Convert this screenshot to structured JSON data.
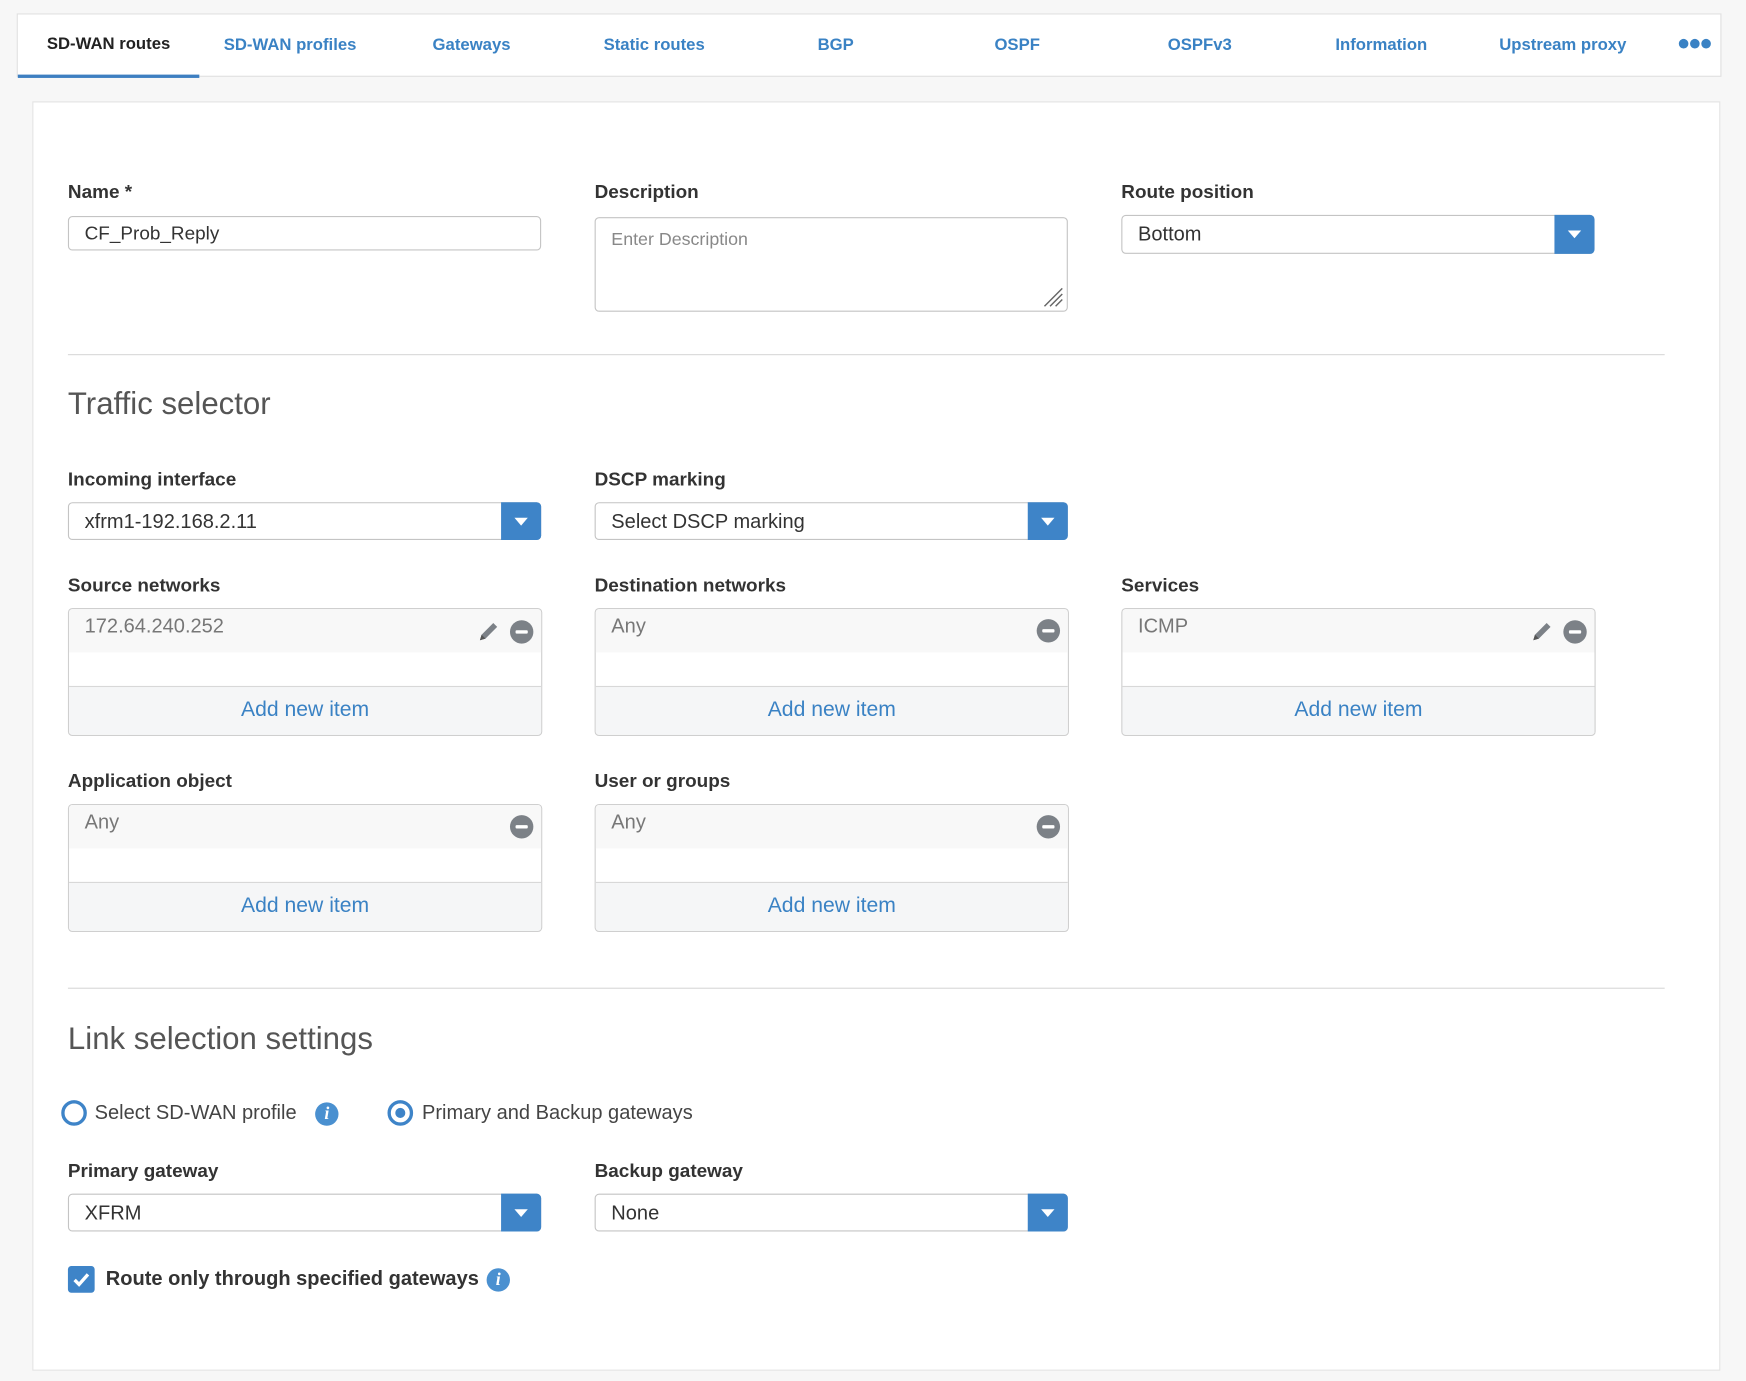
{
  "tabs": [
    {
      "label": "SD-WAN routes",
      "active": true
    },
    {
      "label": "SD-WAN profiles"
    },
    {
      "label": "Gateways"
    },
    {
      "label": "Static routes"
    },
    {
      "label": "BGP"
    },
    {
      "label": "OSPF"
    },
    {
      "label": "OSPFv3"
    },
    {
      "label": "Information"
    },
    {
      "label": "Upstream proxy"
    }
  ],
  "more_icon": "more-horizontal-icon",
  "general": {
    "name_label": "Name *",
    "name_value": "CF_Prob_Reply",
    "description_label": "Description",
    "description_placeholder": "Enter Description",
    "route_position_label": "Route position",
    "route_position_value": "Bottom"
  },
  "traffic_selector": {
    "title": "Traffic selector",
    "incoming_interface_label": "Incoming interface",
    "incoming_interface_value": "xfrm1-192.168.2.11",
    "dscp_label": "DSCP marking",
    "dscp_value": "Select DSCP marking",
    "source_label": "Source networks",
    "source_item": "172.64.240.252",
    "destination_label": "Destination networks",
    "destination_item": "Any",
    "services_label": "Services",
    "services_item": "ICMP",
    "application_label": "Application object",
    "application_item": "Any",
    "users_label": "User or groups",
    "users_item": "Any",
    "add_new_item": "Add new item"
  },
  "link_selection": {
    "title": "Link selection settings",
    "radio_sdwan_profile": "Select SD-WAN profile",
    "radio_primary_backup": "Primary and Backup gateways",
    "selected_radio": "Primary and Backup gateways",
    "primary_label": "Primary gateway",
    "primary_value": "XFRM",
    "backup_label": "Backup gateway",
    "backup_value": "None",
    "route_only_label": "Route only through specified gateways",
    "route_only_checked": true
  },
  "colors": {
    "accent": "#3e84c8",
    "link": "#3a82c4"
  }
}
